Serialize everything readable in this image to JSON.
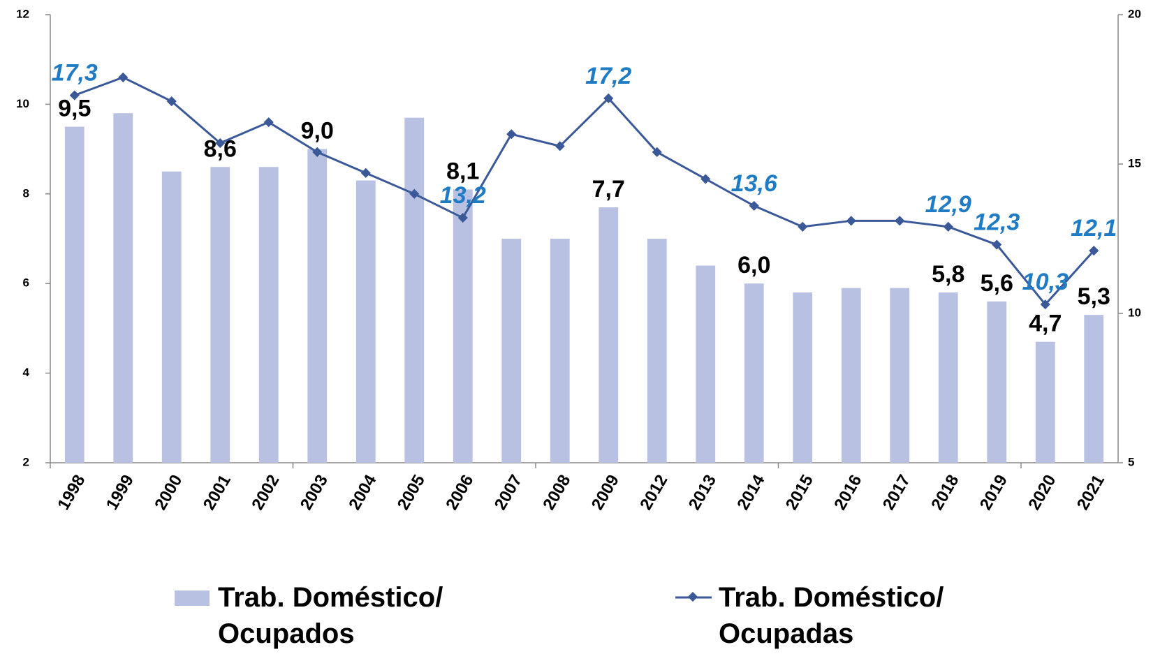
{
  "chart_data": {
    "type": "bar",
    "categories": [
      "1998",
      "1999",
      "2000",
      "2001",
      "2002",
      "2003",
      "2004",
      "2005",
      "2006",
      "2007",
      "2008",
      "2009",
      "2012",
      "2013",
      "2014",
      "2015",
      "2016",
      "2017",
      "2018",
      "2019",
      "2020",
      "2021"
    ],
    "series": [
      {
        "name": "Trab. Doméstico/ Ocupados",
        "type": "bar",
        "color": "#b9c1e3",
        "axis": "y",
        "values": [
          9.5,
          9.8,
          8.5,
          8.6,
          8.6,
          9.0,
          8.3,
          9.7,
          8.1,
          7.0,
          7.0,
          7.7,
          7.0,
          6.4,
          6.0,
          5.8,
          5.9,
          5.9,
          5.8,
          5.6,
          4.7,
          5.3
        ],
        "value_labels": [
          "9,5",
          null,
          null,
          "8,6",
          null,
          "9,0",
          null,
          null,
          "8,1",
          null,
          null,
          "7,7",
          null,
          null,
          "6,0",
          null,
          null,
          null,
          "5,8",
          "5,6",
          "4,7",
          "5,3"
        ]
      },
      {
        "name": "Trab. Doméstico/ Ocupadas",
        "type": "line",
        "color": "#3b5998",
        "axis": "y2",
        "values": [
          17.3,
          17.9,
          17.1,
          15.7,
          16.4,
          15.4,
          14.7,
          14.0,
          13.2,
          16.0,
          15.6,
          17.2,
          15.4,
          14.5,
          13.6,
          12.9,
          13.1,
          13.1,
          12.9,
          12.3,
          10.3,
          12.1
        ],
        "value_labels": [
          "17,3",
          null,
          null,
          null,
          null,
          null,
          null,
          null,
          "13,2",
          null,
          null,
          "17,2",
          null,
          null,
          "13,6",
          null,
          null,
          null,
          "12,9",
          "12,3",
          "10,3",
          "12,1"
        ]
      }
    ],
    "ylim": [
      2,
      12
    ],
    "yticks": [
      2,
      4,
      6,
      8,
      10,
      12
    ],
    "y2lim": [
      5,
      20
    ],
    "y2ticks": [
      5,
      10,
      15,
      20
    ],
    "grid": false,
    "legend": "bottom"
  }
}
